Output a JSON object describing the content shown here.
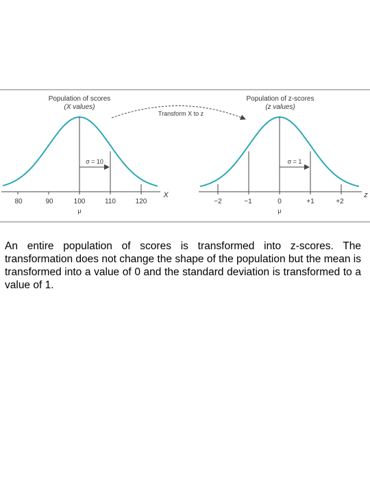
{
  "left_panel": {
    "title_line1": "Population of scores",
    "title_line2": "(X values)",
    "sigma_label": "σ = 10",
    "axis_variable": "X",
    "tick_labels": [
      "80",
      "90",
      "100",
      "110",
      "120"
    ],
    "mean_label": "μ"
  },
  "right_panel": {
    "title_line1": "Population of z-scores",
    "title_line2": "(z values)",
    "sigma_label": "σ = 1",
    "axis_variable": "z",
    "tick_labels": [
      "−2",
      "−1",
      "0",
      "+1",
      "+2"
    ],
    "mean_label": "μ"
  },
  "transform_label": "Transform X to z",
  "caption": "An entire population of scores is transformed into z-scores. The transformation does not change the shape of the population but the mean is transformed into a value of 0 and the standard deviation is transformed to a value of 1.",
  "colors": {
    "curve": "#2aa8b4",
    "lines": "#444444",
    "frame": "#777777"
  }
}
